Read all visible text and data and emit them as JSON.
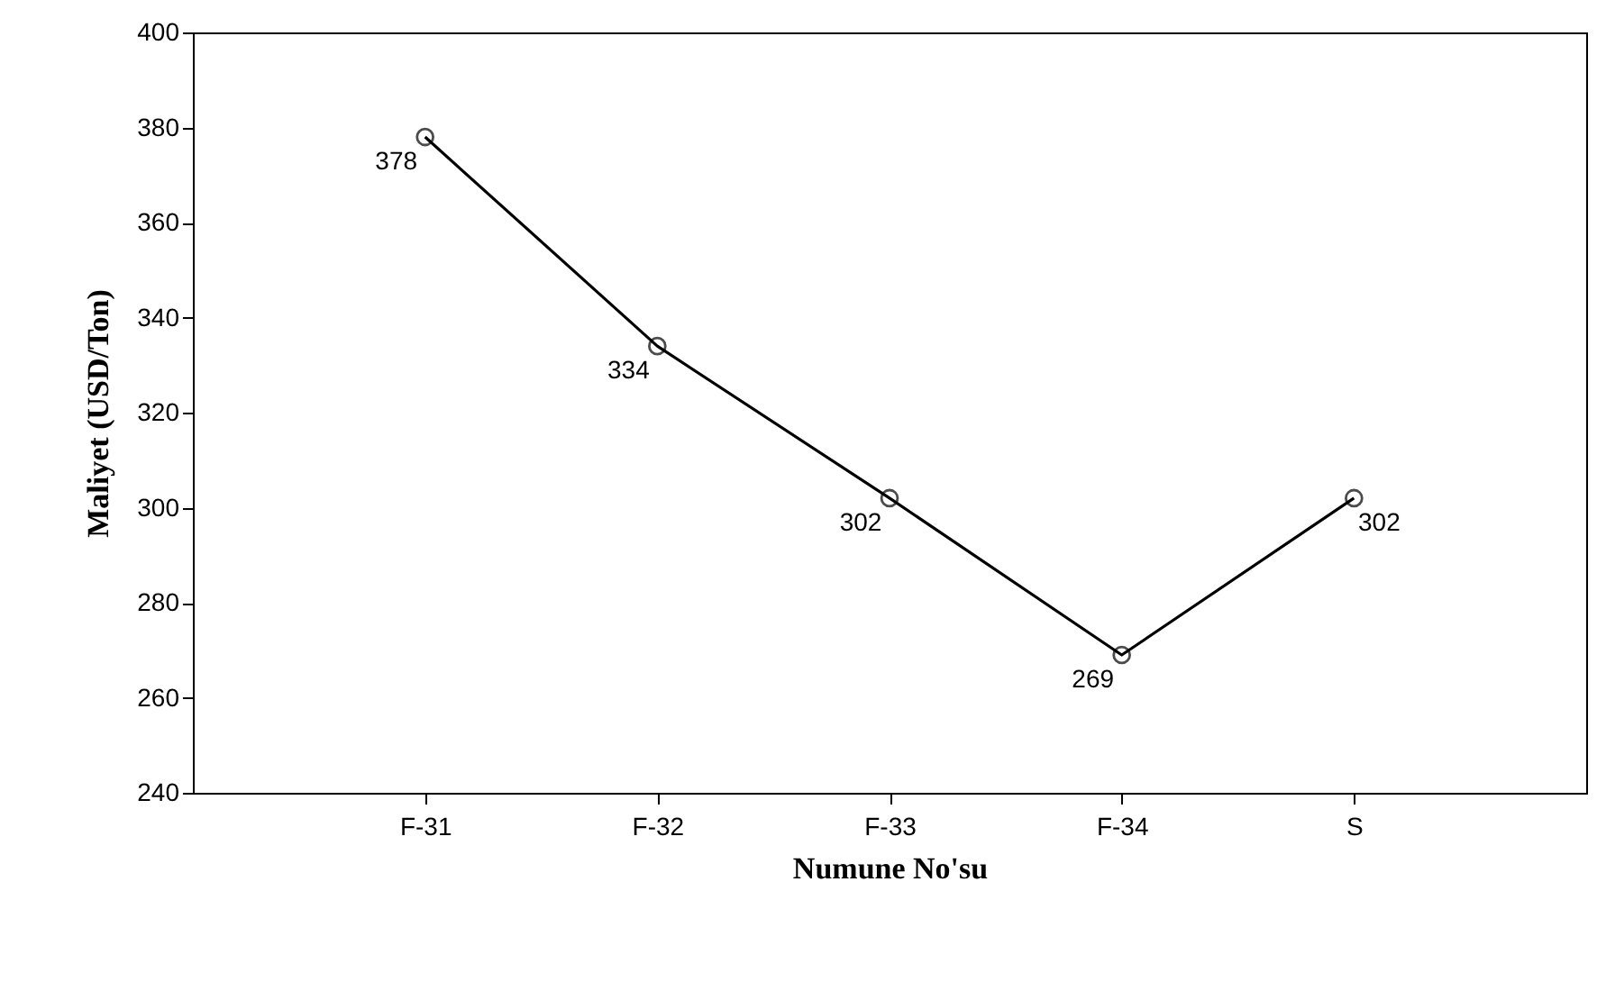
{
  "chart_data": {
    "type": "line",
    "xlabel": "Numune No'su",
    "ylabel": "Maliyet (USD/Ton)",
    "categories": [
      "F-31",
      "F-32",
      "F-33",
      "F-34",
      "S"
    ],
    "series": [
      {
        "color": "#000000",
        "values": [
          378,
          334,
          302,
          269,
          302
        ]
      }
    ],
    "ylim": [
      240,
      400
    ],
    "yticks": [
      240,
      260,
      280,
      300,
      320,
      340,
      360,
      380,
      400
    ],
    "grid": false,
    "marker": "circle",
    "line_style": "solid",
    "data_labels": true
  }
}
